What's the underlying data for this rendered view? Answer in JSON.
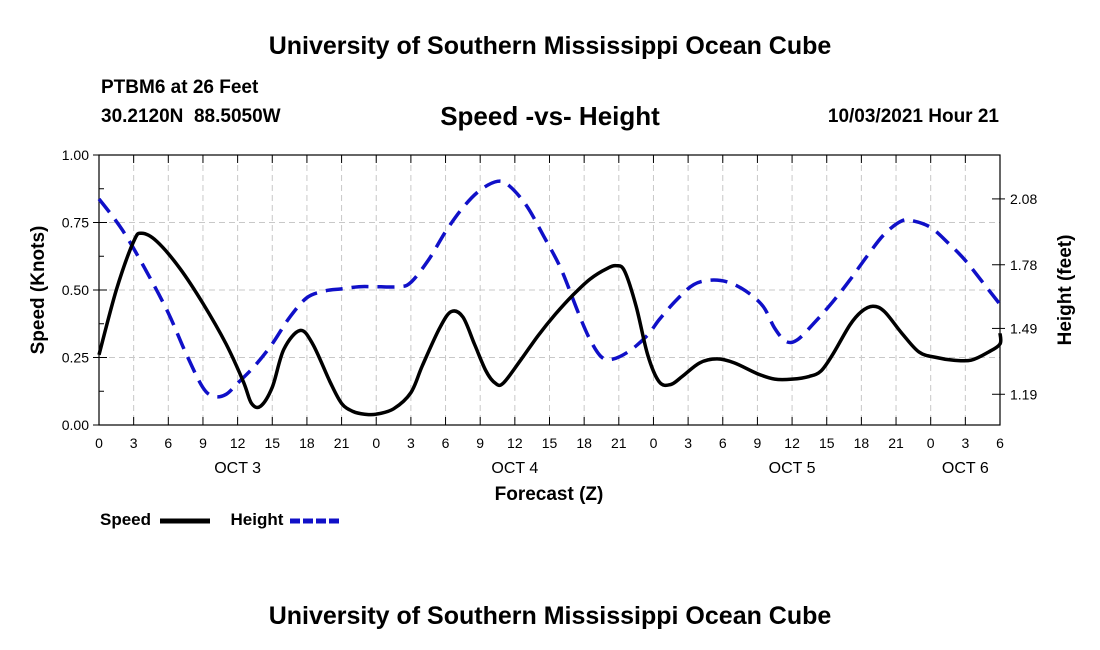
{
  "header": {
    "title": "University of Southern Mississippi Ocean Cube",
    "station": "PTBM6 at 26 Feet",
    "location": "30.2120N  88.5050W",
    "subtitle": "Speed -vs- Height",
    "datetime": "10/03/2021 Hour 21"
  },
  "footer": {
    "title": "University of Southern Mississippi Ocean Cube"
  },
  "legend": {
    "speed_label": "Speed",
    "height_label": "Height"
  },
  "colors": {
    "speed": "#000000",
    "height": "#1010c8",
    "grid": "#c8c8c8"
  },
  "chart_data": {
    "type": "line",
    "title": "Speed -vs- Height",
    "xlabel": "Forecast (Z)",
    "ylabel": "Speed (Knots)",
    "y2label": "Height (feet)",
    "x_range_hours": [
      0,
      78
    ],
    "x_tick_step_hours": 3,
    "x_tick_labels": [
      "0",
      "3",
      "6",
      "9",
      "12",
      "15",
      "18",
      "21",
      "0",
      "3",
      "6",
      "9",
      "12",
      "15",
      "18",
      "21",
      "0",
      "3",
      "6",
      "9",
      "12",
      "15",
      "18",
      "21",
      "0",
      "3",
      "6"
    ],
    "day_labels": [
      {
        "label": "OCT 3",
        "hour": 12
      },
      {
        "label": "OCT 4",
        "hour": 36
      },
      {
        "label": "OCT 5",
        "hour": 60
      },
      {
        "label": "OCT 6",
        "hour": 75
      }
    ],
    "ylim": [
      0,
      1
    ],
    "y_ticks": [
      "0.00",
      "0.25",
      "0.50",
      "0.75",
      "1.00"
    ],
    "y2lim": [
      1.05,
      2.28
    ],
    "y2_ticks": [
      {
        "label": "1.19",
        "value": 1.19
      },
      {
        "label": "1.49",
        "value": 1.49
      },
      {
        "label": "1.78",
        "value": 1.78
      },
      {
        "label": "2.08",
        "value": 2.08
      }
    ],
    "grid": true,
    "legend_position": "bottom-left",
    "series": [
      {
        "name": "Speed",
        "axis": "left",
        "style": "solid",
        "points": [
          [
            0,
            0.26
          ],
          [
            1.5,
            0.5
          ],
          [
            3,
            0.68
          ],
          [
            3.7,
            0.71
          ],
          [
            5,
            0.68
          ],
          [
            7,
            0.58
          ],
          [
            9,
            0.45
          ],
          [
            11,
            0.3
          ],
          [
            12.5,
            0.16
          ],
          [
            13.2,
            0.08
          ],
          [
            14,
            0.07
          ],
          [
            15,
            0.14
          ],
          [
            16,
            0.28
          ],
          [
            17.4,
            0.35
          ],
          [
            18.5,
            0.3
          ],
          [
            20,
            0.16
          ],
          [
            21,
            0.08
          ],
          [
            22,
            0.05
          ],
          [
            23,
            0.04
          ],
          [
            24,
            0.04
          ],
          [
            25.5,
            0.06
          ],
          [
            27,
            0.12
          ],
          [
            28,
            0.22
          ],
          [
            29.5,
            0.36
          ],
          [
            30.5,
            0.42
          ],
          [
            31.5,
            0.4
          ],
          [
            32.5,
            0.3
          ],
          [
            33.5,
            0.2
          ],
          [
            34.3,
            0.155
          ],
          [
            35,
            0.155
          ],
          [
            36.5,
            0.24
          ],
          [
            38,
            0.33
          ],
          [
            39.5,
            0.41
          ],
          [
            41,
            0.48
          ],
          [
            42.5,
            0.54
          ],
          [
            44,
            0.58
          ],
          [
            44.8,
            0.59
          ],
          [
            45.5,
            0.57
          ],
          [
            46.5,
            0.44
          ],
          [
            47.5,
            0.26
          ],
          [
            48.5,
            0.16
          ],
          [
            49.5,
            0.15
          ],
          [
            50.5,
            0.18
          ],
          [
            52,
            0.23
          ],
          [
            53.5,
            0.245
          ],
          [
            55,
            0.23
          ],
          [
            57,
            0.19
          ],
          [
            58.5,
            0.17
          ],
          [
            60,
            0.17
          ],
          [
            61.5,
            0.18
          ],
          [
            62.5,
            0.2
          ],
          [
            63.5,
            0.26
          ],
          [
            65,
            0.37
          ],
          [
            66,
            0.42
          ],
          [
            67,
            0.44
          ],
          [
            68,
            0.42
          ],
          [
            69.5,
            0.34
          ],
          [
            71,
            0.27
          ],
          [
            72.5,
            0.25
          ],
          [
            74,
            0.24
          ],
          [
            75.5,
            0.24
          ],
          [
            77,
            0.27
          ],
          [
            78,
            0.3
          ],
          [
            78,
            0.34
          ]
        ]
      },
      {
        "name": "Height",
        "axis": "right",
        "style": "dashed",
        "points": [
          [
            0,
            2.08
          ],
          [
            2,
            1.94
          ],
          [
            4,
            1.76
          ],
          [
            6,
            1.56
          ],
          [
            7.5,
            1.38
          ],
          [
            9,
            1.22
          ],
          [
            10,
            1.18
          ],
          [
            11,
            1.19
          ],
          [
            12,
            1.24
          ],
          [
            13.5,
            1.32
          ],
          [
            15,
            1.42
          ],
          [
            16.5,
            1.54
          ],
          [
            18,
            1.63
          ],
          [
            19.5,
            1.66
          ],
          [
            21,
            1.67
          ],
          [
            22.5,
            1.68
          ],
          [
            24,
            1.68
          ],
          [
            26,
            1.68
          ],
          [
            27,
            1.7
          ],
          [
            28.5,
            1.8
          ],
          [
            30,
            1.93
          ],
          [
            31.5,
            2.04
          ],
          [
            33,
            2.12
          ],
          [
            34.5,
            2.16
          ],
          [
            35.5,
            2.14
          ],
          [
            37,
            2.05
          ],
          [
            38.5,
            1.91
          ],
          [
            40,
            1.76
          ],
          [
            41.5,
            1.56
          ],
          [
            42.5,
            1.44
          ],
          [
            43.5,
            1.36
          ],
          [
            44.5,
            1.35
          ],
          [
            46,
            1.39
          ],
          [
            47.5,
            1.46
          ],
          [
            48.5,
            1.53
          ],
          [
            50,
            1.62
          ],
          [
            51.5,
            1.69
          ],
          [
            53,
            1.71
          ],
          [
            54.5,
            1.7
          ],
          [
            56,
            1.66
          ],
          [
            57.5,
            1.59
          ],
          [
            58.5,
            1.49
          ],
          [
            59.5,
            1.43
          ],
          [
            60.5,
            1.44
          ],
          [
            62,
            1.52
          ],
          [
            63.5,
            1.61
          ],
          [
            65,
            1.71
          ],
          [
            66.5,
            1.82
          ],
          [
            68,
            1.92
          ],
          [
            69.5,
            1.98
          ],
          [
            70.5,
            1.98
          ],
          [
            72,
            1.95
          ],
          [
            73.5,
            1.88
          ],
          [
            75,
            1.8
          ],
          [
            76.5,
            1.7
          ],
          [
            78,
            1.6
          ]
        ]
      }
    ]
  }
}
